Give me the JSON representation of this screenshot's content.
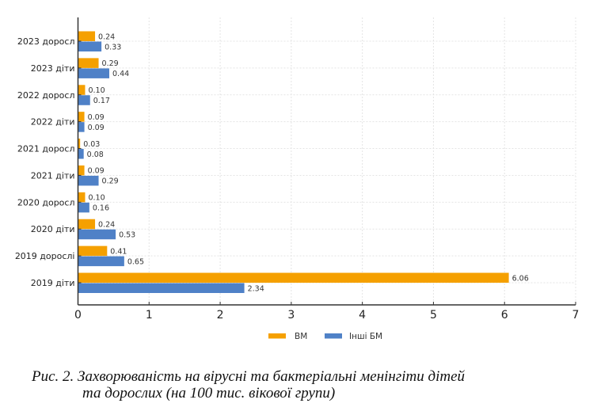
{
  "chart_data": {
    "type": "bar",
    "orientation": "horizontal",
    "categories": [
      "2023 доросл",
      "2023 діти",
      "2022 доросл",
      "2022 діти",
      "2021 доросл",
      "2021 діти",
      "2020 доросл",
      "2020 діти",
      "2019 дорослі",
      "2019 діти"
    ],
    "series": [
      {
        "name": "ВМ",
        "color": "#f5a000",
        "values": [
          0.24,
          0.29,
          0.1,
          0.09,
          0.03,
          0.09,
          0.1,
          0.24,
          0.41,
          6.06
        ],
        "labels": [
          "0.24",
          "0.29",
          "0.10",
          "0.09",
          "0.03",
          "0.09",
          "0.10",
          "0.24",
          "0.41",
          "6.06"
        ]
      },
      {
        "name": "Інші БМ",
        "color": "#4f81c7",
        "values": [
          0.33,
          0.44,
          0.17,
          0.09,
          0.08,
          0.29,
          0.16,
          0.53,
          0.65,
          2.34
        ],
        "labels": [
          "0.33",
          "0.44",
          "0.17",
          "0.09",
          "0.08",
          "0.29",
          "0.16",
          "0.53",
          "0.65",
          "2.34"
        ]
      }
    ],
    "xlim": [
      0,
      7
    ],
    "xticks": [
      "0",
      "1",
      "2",
      "3",
      "4",
      "5",
      "6",
      "7"
    ],
    "grid": true,
    "legend": "bottom-center",
    "title": "",
    "xlabel": "",
    "ylabel": ""
  },
  "caption": {
    "line1": "Рис. 2. Захворюваність на вірусні та бактеріальні менінгіти дітей",
    "line2": "та дорослих (на 100 тис. вікової групи)"
  }
}
